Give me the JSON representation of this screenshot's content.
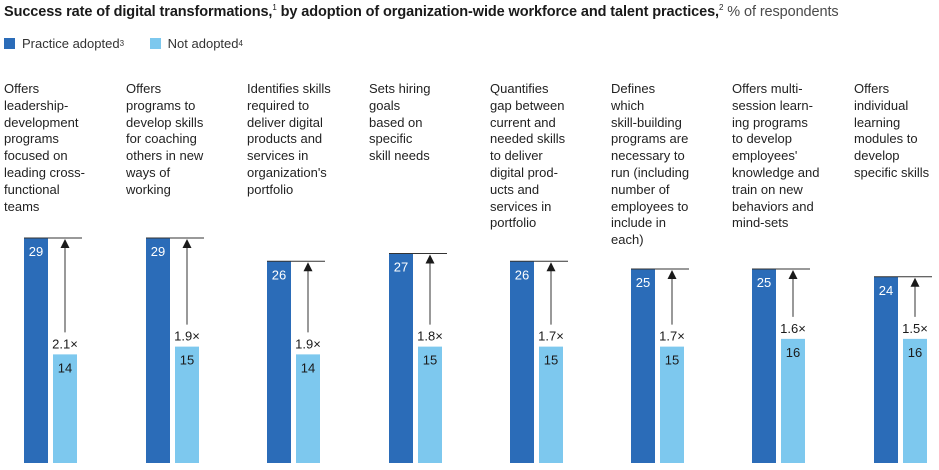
{
  "chart_data": {
    "type": "bar",
    "title": "Success rate of digital transformations,",
    "title_fn": "1",
    "title_mid": " by adoption of organization-wide workforce and talent practices,",
    "title_fn2": "2",
    "subtitle": " % of respondents",
    "legend": [
      {
        "label": "Practice adopted",
        "footnote": "3",
        "color": "#2b6cb8"
      },
      {
        "label": "Not adopted",
        "footnote": "4",
        "color": "#7dc8ee"
      }
    ],
    "ylim": [
      0,
      29
    ],
    "categories": [
      "Offers\nleadership-\ndevelopment\nprograms\nfocused on\nleading cross-\nfunctional\nteams",
      "Offers\nprograms to\ndevelop skills\nfor coaching\nothers in new\nways of\nworking",
      "Identifies skills\nrequired to\ndeliver digital\nproducts and\nservices in\norganization's\nportfolio",
      "Sets hiring\ngoals\nbased on\nspecific\nskill needs",
      "Quantifies\ngap between\ncurrent and\nneeded skills\nto deliver\ndigital prod-\nucts and\nservices in\nportfolio",
      "Defines\nwhich\nskill-building\nprograms are\nnecessary to\nrun (including\nnumber of\nemployees to\ninclude in\neach)",
      "Offers multi-\nsession learn-\ning programs\nto develop\nemployees'\nknowledge and\ntrain on new\nbehaviors and\nmind-sets",
      "Offers\nindividual\nlearning\nmodules to\ndevelop\nspecific skills"
    ],
    "series": [
      {
        "name": "Practice adopted",
        "values": [
          29,
          29,
          26,
          27,
          26,
          25,
          25,
          24
        ]
      },
      {
        "name": "Not adopted",
        "values": [
          14,
          15,
          14,
          15,
          15,
          15,
          16,
          16
        ]
      }
    ],
    "multipliers": [
      "2.1×",
      "1.9×",
      "1.9×",
      "1.8×",
      "1.7×",
      "1.7×",
      "1.6×",
      "1.5×"
    ]
  }
}
